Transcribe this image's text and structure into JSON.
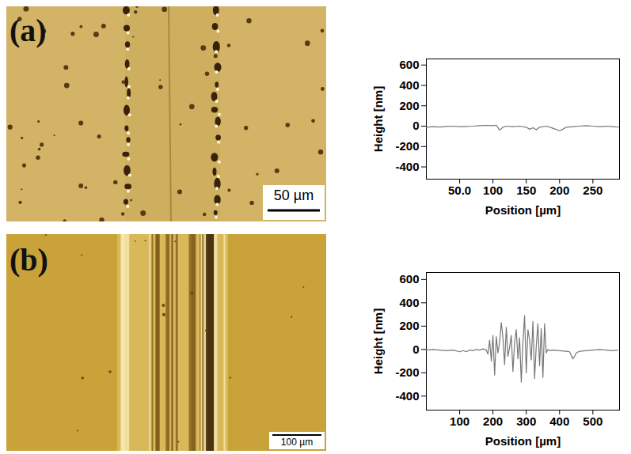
{
  "chart_data": [
    {
      "type": "line",
      "title": "(a)",
      "annotations": [
        "50 µm"
      ],
      "xlabel": "Position [µm]",
      "ylabel": "Height [nm]",
      "color": "#777777",
      "xlim": [
        0,
        290
      ],
      "ylim": [
        -520,
        660
      ],
      "xticks": [
        {
          "value": 50,
          "label": "50.0"
        },
        100,
        150,
        200,
        250
      ],
      "yticks": [
        -400,
        -200,
        0,
        200,
        400,
        600
      ],
      "x": [
        0,
        10,
        20,
        30,
        40,
        50,
        60,
        70,
        80,
        90,
        100,
        105,
        110,
        115,
        120,
        130,
        140,
        150,
        155,
        160,
        165,
        170,
        180,
        190,
        200,
        205,
        210,
        220,
        230,
        240,
        250,
        260,
        270,
        280,
        290
      ],
      "values": [
        -10,
        -5,
        -8,
        -3,
        0,
        -5,
        -3,
        0,
        5,
        8,
        5,
        10,
        -40,
        -10,
        0,
        -5,
        0,
        -10,
        -30,
        -15,
        -35,
        -10,
        0,
        -20,
        -45,
        -30,
        -10,
        -5,
        0,
        5,
        0,
        -5,
        0,
        -5,
        -10
      ]
    },
    {
      "type": "line",
      "title": "(b)",
      "annotations": [
        "100 µm"
      ],
      "xlabel": "Position [µm]",
      "ylabel": "Height [nm]",
      "color": "#777777",
      "xlim": [
        0,
        580
      ],
      "ylim": [
        -520,
        660
      ],
      "xticks": [
        100,
        200,
        300,
        400,
        500
      ],
      "yticks": [
        -400,
        -200,
        0,
        200,
        400,
        600
      ],
      "x": [
        0,
        20,
        40,
        60,
        80,
        100,
        110,
        120,
        130,
        140,
        150,
        160,
        170,
        180,
        185,
        190,
        195,
        200,
        205,
        210,
        215,
        220,
        225,
        230,
        235,
        240,
        245,
        250,
        255,
        260,
        265,
        270,
        275,
        280,
        285,
        290,
        295,
        300,
        305,
        310,
        315,
        320,
        325,
        330,
        335,
        340,
        345,
        350,
        355,
        360,
        365,
        370,
        380,
        400,
        420,
        430,
        440,
        445,
        450,
        460,
        480,
        500,
        520,
        540,
        560,
        575
      ],
      "values": [
        -5,
        0,
        -5,
        -10,
        -5,
        -20,
        -10,
        -20,
        -5,
        -10,
        0,
        -5,
        5,
        -5,
        -40,
        80,
        -100,
        120,
        -220,
        110,
        -30,
        60,
        230,
        100,
        -130,
        190,
        -60,
        20,
        120,
        -190,
        60,
        170,
        -80,
        100,
        -280,
        60,
        290,
        -200,
        170,
        80,
        -90,
        240,
        -250,
        30,
        220,
        -140,
        180,
        -240,
        220,
        -30,
        0,
        -10,
        -5,
        -10,
        -15,
        -20,
        -80,
        -60,
        -30,
        -15,
        -10,
        -5,
        0,
        -5,
        -10,
        -5
      ]
    }
  ]
}
